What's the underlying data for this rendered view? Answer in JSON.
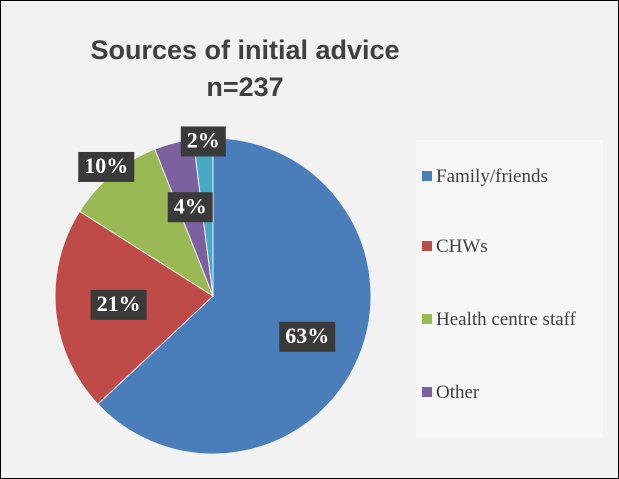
{
  "chart_data": {
    "type": "pie",
    "title": "Sources of initial advice",
    "subtitle": "n=237",
    "categories": [
      "Family/friends",
      "CHWs",
      "Health centre staff",
      "Other",
      null
    ],
    "values": [
      63,
      21,
      10,
      4,
      2
    ],
    "value_labels": [
      "63%",
      "21%",
      "10%",
      "4%",
      "2%"
    ],
    "colors": [
      "#4a7ebb",
      "#be4b48",
      "#98b954",
      "#7d60a0",
      "#46aac5"
    ],
    "legend": "right"
  }
}
